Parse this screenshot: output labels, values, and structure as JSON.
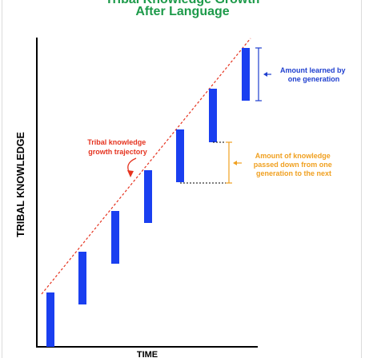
{
  "title_line1": "Tribal Knowledge Growth",
  "title_line2": "After Language",
  "axes": {
    "y_label": "TRIBAL KNOWLEDGE",
    "x_label": "TIME"
  },
  "trajectory_label": [
    "Tribal knowledge",
    "growth trajectory"
  ],
  "learned_label": [
    "Amount learned by",
    "one generation"
  ],
  "passed_label": [
    "Amount of knowledge",
    "passed down from one",
    "generation to the next"
  ],
  "colors": {
    "title": "#1d9a4a",
    "bar": "#1a3ff0",
    "trajectory": "#e5331f",
    "passed": "#f0a020",
    "learned": "#1f3fcf",
    "axis": "#000000"
  },
  "generations": 7
}
